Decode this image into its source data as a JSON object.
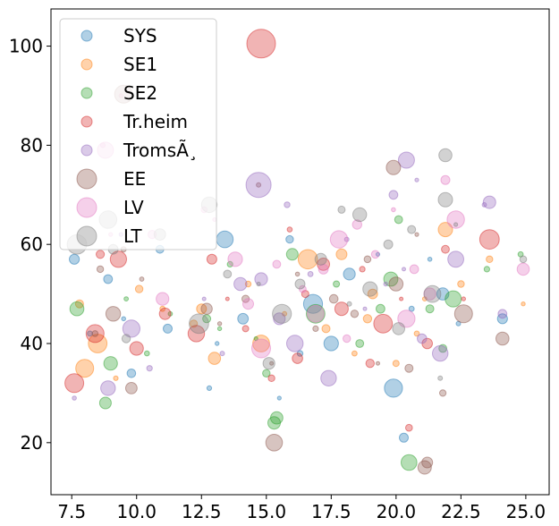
{
  "chart_data": {
    "type": "scatter",
    "title": "",
    "xlabel": "",
    "ylabel": "",
    "xlim": [
      6.7,
      25.9
    ],
    "ylim": [
      9.5,
      107.5
    ],
    "xticks": [
      7.5,
      10.0,
      12.5,
      15.0,
      17.5,
      20.0,
      22.5,
      25.0
    ],
    "xtick_labels": [
      "7.5",
      "10.0",
      "12.5",
      "15.0",
      "17.5",
      "20.0",
      "22.5",
      "25.0"
    ],
    "yticks": [
      20,
      40,
      60,
      80,
      100
    ],
    "ytick_labels": [
      "20",
      "40",
      "60",
      "80",
      "100"
    ],
    "grid": false,
    "legend_position": "top-left",
    "series": [
      {
        "name": "SYS",
        "color": "#1f77b4",
        "legend_size": 12,
        "points": [
          [
            8.9,
            53
          ],
          [
            7.6,
            57
          ],
          [
            9.5,
            45
          ],
          [
            8.2,
            42
          ],
          [
            10.9,
            59
          ],
          [
            11.2,
            43
          ],
          [
            13.1,
            40
          ],
          [
            13.4,
            61
          ],
          [
            14.1,
            45
          ],
          [
            15.9,
            61
          ],
          [
            16.3,
            38
          ],
          [
            17.5,
            40
          ],
          [
            18.2,
            54
          ],
          [
            19.3,
            58
          ],
          [
            20.3,
            21
          ],
          [
            20.6,
            47
          ],
          [
            21.8,
            50
          ],
          [
            22.4,
            44
          ],
          [
            24.1,
            45
          ],
          [
            9.8,
            34
          ],
          [
            12.8,
            31
          ],
          [
            15.5,
            29
          ],
          [
            19.9,
            31
          ],
          [
            16.8,
            48
          ],
          [
            21.3,
            57
          ]
        ]
      },
      {
        "name": "SE1",
        "color": "#ff7f0e",
        "legend_size": 12,
        "points": [
          [
            7.8,
            48
          ],
          [
            8.5,
            40
          ],
          [
            9.2,
            33
          ],
          [
            10.1,
            51
          ],
          [
            12.5,
            47
          ],
          [
            13.0,
            37
          ],
          [
            14.3,
            52
          ],
          [
            15.7,
            46
          ],
          [
            16.6,
            57
          ],
          [
            17.3,
            43
          ],
          [
            18.4,
            38
          ],
          [
            19.1,
            50
          ],
          [
            20.0,
            36
          ],
          [
            21.1,
            49
          ],
          [
            21.9,
            63
          ],
          [
            22.5,
            52
          ],
          [
            23.6,
            57
          ],
          [
            24.9,
            48
          ],
          [
            8.0,
            35
          ],
          [
            11.0,
            47
          ],
          [
            14.8,
            40
          ],
          [
            18.9,
            45
          ],
          [
            20.8,
            42
          ],
          [
            17.9,
            58
          ],
          [
            12.2,
            44
          ]
        ]
      },
      {
        "name": "SE2",
        "color": "#2ca02c",
        "legend_size": 12,
        "points": [
          [
            7.7,
            47
          ],
          [
            8.8,
            28
          ],
          [
            9.6,
            49
          ],
          [
            10.4,
            38
          ],
          [
            12.7,
            45
          ],
          [
            13.2,
            43
          ],
          [
            14.6,
            41
          ],
          [
            15.0,
            34
          ],
          [
            15.4,
            25
          ],
          [
            16.0,
            58
          ],
          [
            16.9,
            46
          ],
          [
            17.7,
            52
          ],
          [
            18.6,
            40
          ],
          [
            19.4,
            47
          ],
          [
            20.1,
            65
          ],
          [
            20.5,
            16
          ],
          [
            21.3,
            47
          ],
          [
            21.8,
            39
          ],
          [
            23.5,
            55
          ],
          [
            24.8,
            58
          ],
          [
            9.0,
            36
          ],
          [
            11.3,
            46
          ],
          [
            13.6,
            56
          ],
          [
            19.8,
            53
          ],
          [
            22.2,
            49
          ]
        ]
      },
      {
        "name": "Tr.heim",
        "color": "#d62728",
        "legend_size": 12,
        "points": [
          [
            7.6,
            32
          ],
          [
            8.4,
            42
          ],
          [
            9.3,
            57
          ],
          [
            10.0,
            39
          ],
          [
            11.1,
            46
          ],
          [
            12.9,
            57
          ],
          [
            13.5,
            49
          ],
          [
            14.2,
            43
          ],
          [
            15.2,
            33
          ],
          [
            15.9,
            63
          ],
          [
            16.5,
            50
          ],
          [
            17.2,
            56
          ],
          [
            17.9,
            47
          ],
          [
            18.7,
            55
          ],
          [
            19.5,
            44
          ],
          [
            20.2,
            49
          ],
          [
            20.5,
            23
          ],
          [
            21.2,
            40
          ],
          [
            21.9,
            59
          ],
          [
            22.6,
            49
          ],
          [
            23.6,
            61
          ],
          [
            8.6,
            58
          ],
          [
            12.3,
            42
          ],
          [
            16.2,
            37
          ],
          [
            19.0,
            36
          ]
        ]
      },
      {
        "name": "TromsÃ¸",
        "color": "#9467bd",
        "legend_size": 12,
        "points": [
          [
            7.6,
            29
          ],
          [
            8.9,
            31
          ],
          [
            9.8,
            43
          ],
          [
            10.5,
            35
          ],
          [
            12.6,
            49
          ],
          [
            13.3,
            38
          ],
          [
            14.0,
            52
          ],
          [
            14.8,
            53
          ],
          [
            15.5,
            45
          ],
          [
            16.1,
            40
          ],
          [
            16.7,
            54
          ],
          [
            17.4,
            33
          ],
          [
            18.1,
            61
          ],
          [
            18.8,
            47
          ],
          [
            19.6,
            52
          ],
          [
            20.3,
            55
          ],
          [
            21.0,
            41
          ],
          [
            21.7,
            38
          ],
          [
            22.3,
            57
          ],
          [
            23.4,
            68
          ],
          [
            24.1,
            46
          ],
          [
            9.4,
            62
          ],
          [
            15.8,
            68
          ],
          [
            19.9,
            70
          ],
          [
            20.8,
            73
          ]
        ]
      },
      {
        "name": "EE",
        "color": "#8c564b",
        "legend_size": 22,
        "points": [
          [
            8.6,
            55
          ],
          [
            9.5,
            59
          ],
          [
            8.4,
            42
          ],
          [
            9.1,
            46
          ],
          [
            10.2,
            53
          ],
          [
            14.7,
            72
          ],
          [
            15.2,
            36
          ],
          [
            12.7,
            47
          ],
          [
            13.2,
            44
          ],
          [
            14.2,
            49
          ],
          [
            16.2,
            54
          ],
          [
            17.6,
            49
          ],
          [
            18.4,
            46
          ],
          [
            19.3,
            36
          ],
          [
            20.0,
            52
          ],
          [
            20.5,
            35
          ],
          [
            21.1,
            15
          ],
          [
            21.8,
            30
          ],
          [
            22.6,
            46
          ],
          [
            24.1,
            41
          ],
          [
            9.8,
            31
          ],
          [
            16.9,
            43
          ],
          [
            18.9,
            57
          ],
          [
            20.8,
            62
          ],
          [
            15.3,
            20
          ]
        ]
      },
      {
        "name": "LV",
        "color": "#e377c2",
        "legend_size": 22,
        "points": [
          [
            9.4,
            90
          ],
          [
            9.0,
            62
          ],
          [
            8.7,
            80
          ],
          [
            12.6,
            67
          ],
          [
            13.0,
            65
          ],
          [
            14.3,
            48
          ],
          [
            15.4,
            56
          ],
          [
            16.4,
            51
          ],
          [
            17.2,
            55
          ],
          [
            17.8,
            61
          ],
          [
            18.5,
            64
          ],
          [
            19.2,
            58
          ],
          [
            19.9,
            67
          ],
          [
            20.4,
            45
          ],
          [
            21.3,
            50
          ],
          [
            21.9,
            73
          ],
          [
            22.3,
            65
          ],
          [
            24.9,
            55
          ],
          [
            10.6,
            62
          ],
          [
            14.8,
            39
          ],
          [
            16.9,
            46
          ],
          [
            18.1,
            41
          ],
          [
            20.7,
            55
          ],
          [
            11.0,
            49
          ],
          [
            13.8,
            57
          ]
        ]
      },
      {
        "name": "LT",
        "color": "#7f7f7f",
        "legend_size": 22,
        "points": [
          [
            8.9,
            65
          ],
          [
            9.1,
            59
          ],
          [
            7.7,
            60
          ],
          [
            10.9,
            62
          ],
          [
            12.8,
            68
          ],
          [
            13.5,
            54
          ],
          [
            14.7,
            52
          ],
          [
            15.6,
            46
          ],
          [
            16.3,
            52
          ],
          [
            17.1,
            57
          ],
          [
            17.9,
            67
          ],
          [
            18.6,
            66
          ],
          [
            19.0,
            51
          ],
          [
            19.7,
            60
          ],
          [
            20.6,
            63
          ],
          [
            21.4,
            50
          ],
          [
            21.9,
            78
          ],
          [
            22.3,
            64
          ],
          [
            24.9,
            57
          ],
          [
            9.6,
            41
          ],
          [
            12.4,
            44
          ],
          [
            15.1,
            36
          ],
          [
            18.2,
            48
          ],
          [
            20.1,
            43
          ],
          [
            21.7,
            33
          ]
        ]
      }
    ],
    "highlighted": [
      {
        "series": "Tr.heim",
        "x": 14.8,
        "y": 100.5,
        "size": 32
      },
      {
        "series": "TromsÃ¸",
        "x": 14.7,
        "y": 72,
        "size": 28
      },
      {
        "series": "EE",
        "x": 9.5,
        "y": 90.3,
        "size": 20
      },
      {
        "series": "LV",
        "x": 8.8,
        "y": 79,
        "size": 18
      },
      {
        "series": "TromsÃ¸",
        "x": 20.4,
        "y": 77,
        "size": 18
      },
      {
        "series": "EE",
        "x": 19.9,
        "y": 75.5,
        "size": 16
      },
      {
        "series": "LT",
        "x": 21.9,
        "y": 69,
        "size": 16
      },
      {
        "series": "TromsÃ¸",
        "x": 23.6,
        "y": 68.5,
        "size": 14
      },
      {
        "series": "SE2",
        "x": 15.3,
        "y": 24,
        "size": 14
      },
      {
        "series": "EE",
        "x": 21.2,
        "y": 16,
        "size": 12
      }
    ]
  }
}
